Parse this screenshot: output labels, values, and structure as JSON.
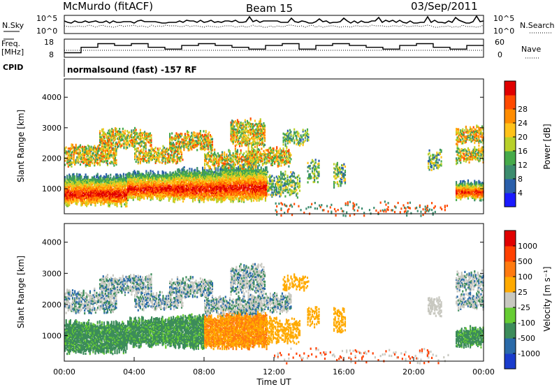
{
  "header": {
    "station": "McMurdo (fitACF)",
    "beam": "Beam 15",
    "date": "03/Sep/2011",
    "cpid_label": "CPID",
    "cpid_value": "normalsound (fast) -157 RF"
  },
  "noise_panel": {
    "left_label": "N.Sky",
    "left_ticks": [
      "10^5",
      "10^0"
    ],
    "right_ticks": [
      "10^5",
      "10^0"
    ],
    "right_label": "N.Search"
  },
  "freq_panel": {
    "left_label_line1": "Freq.",
    "left_label_line2": "[MHz]",
    "left_ticks": [
      "18",
      "8"
    ],
    "right_ticks": [
      "60",
      "0"
    ],
    "right_label": "Nave",
    "freq_steps_mhz": [
      10.5,
      13.5,
      15.5,
      14.5,
      15.5,
      13.5,
      12.5,
      14.5,
      15.5,
      14.5,
      13.5,
      12.5,
      14.5,
      15.5,
      12.5,
      14.5,
      15.5,
      14.5,
      13.5,
      12.5,
      14.5,
      15.5,
      13.5,
      12.5,
      14.5
    ],
    "nave_level": 30
  },
  "chart_data": [
    {
      "type": "heatmap",
      "title": "Power",
      "ylabel": "Slant Range [km]",
      "ylim": [
        180,
        4600
      ],
      "yticks": [
        "1000",
        "2000",
        "3000",
        "4000"
      ],
      "colorbar_label": "Power [dB]",
      "colorbar_ticks": [
        "4",
        "8",
        "12",
        "16",
        "20",
        "24",
        "28"
      ],
      "colorbar_range": [
        0,
        32
      ],
      "colorbar_colors": [
        "#1a1aff",
        "#2a5faa",
        "#3c8c6e",
        "#46aa4a",
        "#b8d02a",
        "#ffc21a",
        "#ff8c00",
        "#ff4a00",
        "#e00000"
      ]
    },
    {
      "type": "heatmap",
      "title": "Velocity",
      "ylabel": "Slant Range [km]",
      "xlabel": "Time UT",
      "ylim": [
        180,
        4600
      ],
      "yticks": [
        "1000",
        "2000",
        "3000",
        "4000"
      ],
      "xticks": [
        "00:00",
        "04:00",
        "08:00",
        "12:00",
        "16:00",
        "20:00",
        "00:00"
      ],
      "colorbar_label": "Velocity [m s⁻¹]",
      "colorbar_ticks": [
        "1000",
        "500",
        "100",
        "25",
        "-25",
        "-100",
        "-500",
        "-1000"
      ],
      "colorbar_colors": [
        "#1a3ccc",
        "#2a6aa8",
        "#3c8c5a",
        "#66cc33",
        "#c8c8c0",
        "#ffaa00",
        "#ff7a10",
        "#ff4000",
        "#e00000"
      ]
    }
  ],
  "scatter_blocks": [
    {
      "t0": 0.0,
      "t1": 3.6,
      "r0": 500,
      "r1": 1400,
      "kind": "main"
    },
    {
      "t0": 3.6,
      "t1": 6.2,
      "r0": 700,
      "r1": 1500,
      "kind": "main"
    },
    {
      "t0": 6.2,
      "t1": 9.0,
      "r0": 650,
      "r1": 1600,
      "kind": "main"
    },
    {
      "t0": 9.0,
      "t1": 11.6,
      "r0": 650,
      "r1": 1700,
      "kind": "main"
    },
    {
      "t0": 11.6,
      "t1": 13.5,
      "r0": 800,
      "r1": 1500,
      "kind": "weak"
    },
    {
      "t0": 13.9,
      "t1": 14.6,
      "r0": 1300,
      "r1": 1900,
      "kind": "weak"
    },
    {
      "t0": 15.4,
      "t1": 16.1,
      "r0": 1100,
      "r1": 1800,
      "kind": "weak"
    },
    {
      "t0": 0.0,
      "t1": 3.0,
      "r0": 1800,
      "r1": 2400,
      "kind": "upper"
    },
    {
      "t0": 2.0,
      "t1": 5.0,
      "r0": 2400,
      "r1": 2900,
      "kind": "upper"
    },
    {
      "t0": 4.0,
      "t1": 6.8,
      "r0": 1900,
      "r1": 2300,
      "kind": "upper"
    },
    {
      "t0": 6.0,
      "t1": 8.5,
      "r0": 2300,
      "r1": 2800,
      "kind": "upper"
    },
    {
      "t0": 8.0,
      "t1": 11.0,
      "r0": 1700,
      "r1": 2200,
      "kind": "upper"
    },
    {
      "t0": 9.5,
      "t1": 11.5,
      "r0": 2400,
      "r1": 3200,
      "kind": "upper"
    },
    {
      "t0": 10.5,
      "t1": 13.0,
      "r0": 1800,
      "r1": 2300,
      "kind": "upper"
    },
    {
      "t0": 12.5,
      "t1": 14.0,
      "r0": 2500,
      "r1": 2900,
      "kind": "weak"
    },
    {
      "t0": 20.8,
      "t1": 21.6,
      "r0": 1700,
      "r1": 2200,
      "kind": "weak"
    },
    {
      "t0": 22.4,
      "t1": 24.0,
      "r0": 700,
      "r1": 1200,
      "kind": "main"
    },
    {
      "t0": 22.4,
      "t1": 24.0,
      "r0": 1900,
      "r1": 2300,
      "kind": "upper"
    },
    {
      "t0": 22.4,
      "t1": 24.0,
      "r0": 2500,
      "r1": 3000,
      "kind": "upper"
    },
    {
      "t0": 12.0,
      "t1": 22.0,
      "r0": 200,
      "r1": 500,
      "kind": "low"
    }
  ]
}
